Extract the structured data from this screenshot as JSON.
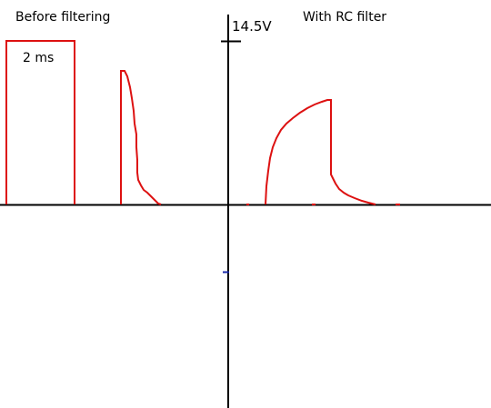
{
  "labels": {
    "left_title": "Before filtering",
    "right_title": "With RC filter",
    "voltage": "14.5V",
    "pulse_width": "2 ms"
  },
  "colors": {
    "axis": "#000000",
    "signal": "#dd1111",
    "tick_marker": "#1a2aa8"
  }
}
